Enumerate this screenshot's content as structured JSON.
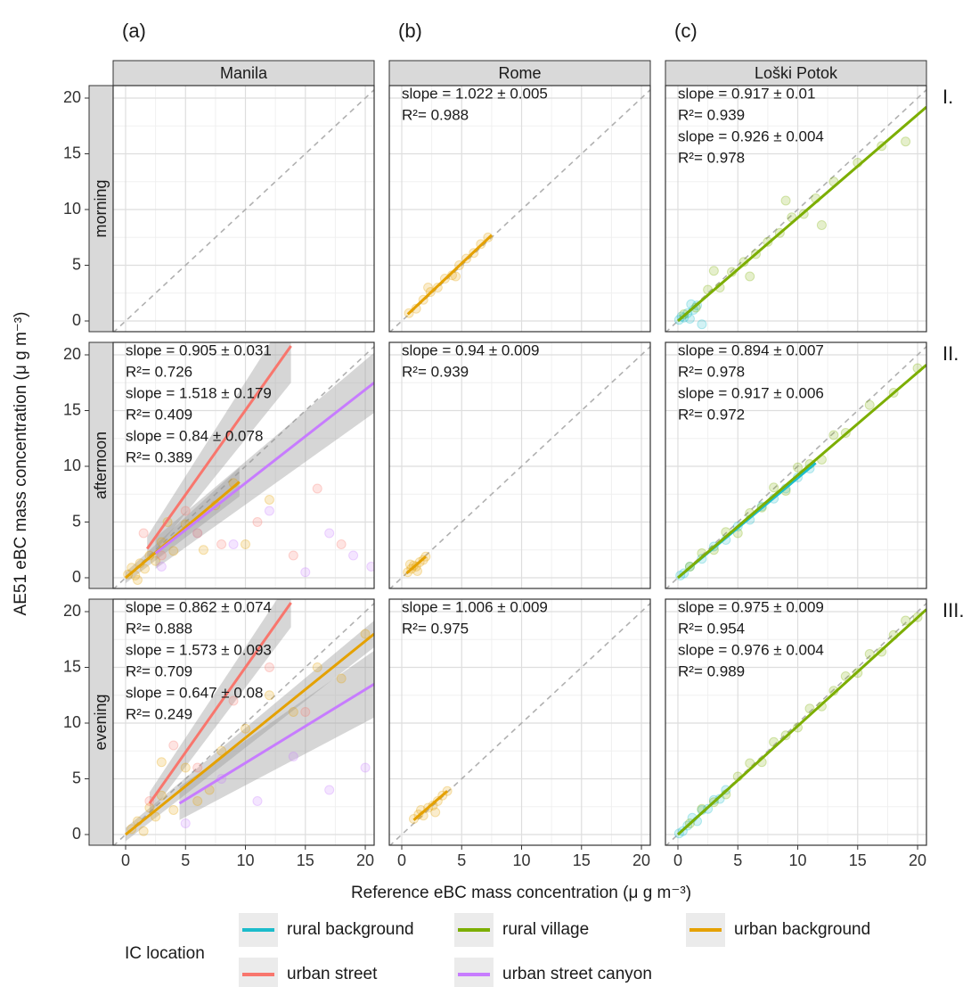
{
  "chart_data": {
    "type": "scatter",
    "x_label": "Reference eBC mass concentration (μ g m⁻³)",
    "y_label": "AE51 eBC mass concentration (μ g m⁻³)",
    "xlim": [
      -1.04,
      20.74
    ],
    "ylim": [
      -0.96,
      21.12
    ],
    "xticks": [
      0,
      5,
      10,
      15,
      20
    ],
    "yticks": [
      0,
      5,
      10,
      15,
      20
    ],
    "grid": true,
    "columns": [
      {
        "tag": "(a)",
        "name": "Manila"
      },
      {
        "tag": "(b)",
        "name": "Rome"
      },
      {
        "tag": "(c)",
        "name": "Loški Potok"
      }
    ],
    "rows": [
      {
        "name": "morning",
        "tag": "I."
      },
      {
        "name": "afternoon",
        "tag": "II."
      },
      {
        "name": "evening",
        "tag": "III."
      }
    ],
    "legend_title": "IC location",
    "series": [
      {
        "name": "rural background",
        "color": "#1cbccb"
      },
      {
        "name": "rural village",
        "color": "#7cae00"
      },
      {
        "name": "urban background",
        "color": "#e5a100"
      },
      {
        "name": "urban street",
        "color": "#f8766d"
      },
      {
        "name": "urban street canyon",
        "color": "#c77cff"
      }
    ],
    "panels": [
      {
        "column": 0,
        "row": 0,
        "groups": []
      },
      {
        "column": 1,
        "row": 0,
        "groups": [
          {
            "series": 2,
            "slope_label": "slope = 1.022 ± 0.005",
            "r2_label": "R²= 0.988",
            "x": [
              0.6,
              1.2,
              1.8,
              2.4,
              3.0,
              3.6,
              4.2,
              4.8,
              5.4,
              6.0,
              6.6,
              7.2,
              2.2,
              4.5
            ],
            "y": [
              0.7,
              1.1,
              1.9,
              2.6,
              3.0,
              3.8,
              4.1,
              5.0,
              5.6,
              6.1,
              6.9,
              7.5,
              3.0,
              4.0
            ],
            "fit": {
              "x": [
                0.5,
                7.5
              ],
              "y": [
                0.6,
                7.7
              ]
            }
          }
        ]
      },
      {
        "column": 2,
        "row": 0,
        "groups": [
          {
            "series": 0,
            "slope_label": "slope = 0.917 ± 0.01",
            "r2_label": "R²= 0.939",
            "x": [
              0.1,
              0.3,
              0.5,
              0.8,
              1.0,
              1.3,
              1.6,
              2.0,
              1.1
            ],
            "y": [
              0.1,
              0.4,
              0.3,
              0.7,
              0.2,
              1.0,
              1.4,
              -0.3,
              1.5
            ],
            "fit": {
              "x": [
                0,
                1.8
              ],
              "y": [
                0,
                1.65
              ]
            }
          },
          {
            "series": 1,
            "slope_label": "slope = 0.926 ± 0.004",
            "r2_label": "R²= 0.978",
            "x": [
              0.5,
              1.5,
              2.5,
              3.5,
              4.5,
              5.5,
              6.5,
              7.5,
              8.5,
              9.5,
              10.5,
              11.5,
              13,
              15,
              17,
              19,
              3,
              6,
              9,
              12
            ],
            "y": [
              0.6,
              1.2,
              2.8,
              3.0,
              4.4,
              5.3,
              6.0,
              7.1,
              7.9,
              9.3,
              9.6,
              11.0,
              12.5,
              14.2,
              15.7,
              16.1,
              4.5,
              4.0,
              10.8,
              8.6
            ],
            "fit": {
              "x": [
                0,
                20.74
              ],
              "y": [
                0,
                19.2
              ]
            }
          }
        ]
      },
      {
        "column": 0,
        "row": 1,
        "groups": [
          {
            "series": 2,
            "slope_label": "slope = 0.905 ± 0.031",
            "r2_label": "R²= 0.726",
            "x": [
              0.2,
              0.5,
              0.8,
              1.2,
              1.6,
              2.0,
              2.5,
              3.0,
              4.0,
              5.0,
              6.0,
              7.5,
              9.0,
              1.0,
              3.5,
              6.5,
              10,
              12
            ],
            "y": [
              0.3,
              0.9,
              0.2,
              1.3,
              0.8,
              2.0,
              1.5,
              3.2,
              2.4,
              4.8,
              4.0,
              6.5,
              8.5,
              -0.2,
              5.0,
              2.5,
              3.0,
              7.0
            ],
            "fit": {
              "x": [
                0,
                9.5
              ],
              "y": [
                0,
                8.6
              ],
              "ci_low": [
                -0.5,
                7.3
              ],
              "ci_high": [
                0.5,
                9.9
              ]
            }
          },
          {
            "series": 3,
            "slope_label": "slope = 1.518 ± 0.179",
            "r2_label": "R²= 0.409",
            "x": [
              1.5,
              3,
              5,
              8,
              11,
              14,
              16,
              18
            ],
            "y": [
              4,
              2,
              6,
              3,
              5,
              2,
              8,
              3
            ],
            "fit": {
              "x": [
                1.8,
                13.8
              ],
              "y": [
                2.6,
                20.8
              ],
              "ci_low": [
                1.5,
                17.5
              ],
              "ci_high": [
                3.7,
                24
              ]
            }
          },
          {
            "series": 4,
            "slope_label": "slope = 0.84 ± 0.078",
            "r2_label": "R²= 0.389",
            "x": [
              3,
              6,
              9,
              12,
              15,
              17,
              19,
              20.5
            ],
            "y": [
              1,
              4,
              3,
              6,
              0.5,
              4,
              2,
              1
            ],
            "fit": {
              "x": [
                2.5,
                20.74
              ],
              "y": [
                2.2,
                17.5
              ],
              "ci_low": [
                0.8,
                14.8
              ],
              "ci_high": [
                3.6,
                20.2
              ]
            }
          }
        ]
      },
      {
        "column": 1,
        "row": 1,
        "groups": [
          {
            "series": 2,
            "slope_label": "slope = 0.94 ± 0.009",
            "r2_label": "R²= 0.939",
            "x": [
              0.5,
              0.8,
              1.0,
              1.2,
              1.5,
              1.8,
              2.0,
              0.7,
              1.3
            ],
            "y": [
              0.5,
              0.8,
              1.1,
              1.0,
              1.4,
              1.6,
              1.9,
              1.2,
              0.6
            ],
            "fit": {
              "x": [
                0.4,
                2.0
              ],
              "y": [
                0.4,
                1.9
              ]
            }
          }
        ]
      },
      {
        "column": 2,
        "row": 1,
        "groups": [
          {
            "series": 0,
            "slope_label": "slope = 0.894 ± 0.007",
            "r2_label": "R²= 0.978",
            "x": [
              0.2,
              0.5,
              1,
              2,
              3,
              4,
              5,
              6,
              7,
              8,
              9,
              10,
              11
            ],
            "y": [
              0.2,
              0.4,
              1.0,
              1.7,
              2.8,
              3.4,
              4.6,
              5.2,
              6.4,
              7.1,
              8.0,
              9.0,
              9.8
            ],
            "fit": {
              "x": [
                0,
                11.5
              ],
              "y": [
                0,
                10.3
              ]
            }
          },
          {
            "series": 1,
            "slope_label": "slope = 0.917 ± 0.006",
            "r2_label": "R²= 0.972",
            "x": [
              1,
              2,
              3,
              4,
              5,
              6,
              7,
              8,
              9,
              10,
              11,
              12,
              13,
              14,
              16,
              18,
              20
            ],
            "y": [
              1.0,
              2.2,
              2.5,
              4.1,
              4.0,
              5.8,
              6.3,
              8.1,
              7.8,
              9.9,
              10.2,
              10.6,
              12.8,
              13.0,
              15.5,
              16.6,
              18.8
            ],
            "fit": {
              "x": [
                0,
                20.74
              ],
              "y": [
                0,
                19.1
              ]
            }
          }
        ]
      },
      {
        "column": 0,
        "row": 2,
        "groups": [
          {
            "series": 2,
            "slope_label": "slope = 0.862 ± 0.074",
            "r2_label": "R²= 0.888",
            "x": [
              0.5,
              1,
              1.5,
              2,
              2.5,
              3,
              4,
              5,
              6,
              8,
              10,
              12,
              14,
              16,
              18,
              20,
              3,
              7
            ],
            "y": [
              0.5,
              1.2,
              0.3,
              2.4,
              1.6,
              3.5,
              2.2,
              6,
              3,
              7.5,
              9.5,
              12.5,
              11,
              15,
              14,
              18,
              6.5,
              4
            ],
            "fit": {
              "x": [
                0,
                20.74
              ],
              "y": [
                0,
                18
              ],
              "ci_low": [
                -0.6,
                16.8
              ],
              "ci_high": [
                0.6,
                19.2
              ]
            }
          },
          {
            "series": 3,
            "slope_label": "slope = 1.573 ± 0.093",
            "r2_label": "R²= 0.709",
            "x": [
              2,
              4,
              6,
              9,
              12,
              15
            ],
            "y": [
              3,
              8,
              6,
              12,
              15,
              11
            ],
            "fit": {
              "x": [
                2,
                13.8
              ],
              "y": [
                2.8,
                20.8
              ],
              "ci_low": [
                1.8,
                18.6
              ],
              "ci_high": [
                3.8,
                23
              ]
            }
          },
          {
            "series": 4,
            "slope_label": "slope = 0.647 ± 0.08",
            "r2_label": "R²= 0.249",
            "x": [
              5,
              8,
              11,
              14,
              17,
              20
            ],
            "y": [
              1,
              5,
              3,
              7,
              4,
              6
            ],
            "fit": {
              "x": [
                4.5,
                20.74
              ],
              "y": [
                2.8,
                13.5
              ],
              "ci_low": [
                1.3,
                10.5
              ],
              "ci_high": [
                4.3,
                16.5
              ]
            }
          }
        ]
      },
      {
        "column": 1,
        "row": 2,
        "groups": [
          {
            "series": 2,
            "slope_label": "slope = 1.006 ± 0.009",
            "r2_label": "R²= 0.975",
            "x": [
              1,
              1.4,
              1.8,
              2.2,
              2.6,
              3,
              3.4,
              3.8,
              1.6,
              2.8
            ],
            "y": [
              1.4,
              1.8,
              1.7,
              2.4,
              2.6,
              3.0,
              3.5,
              3.9,
              2.2,
              2.0
            ],
            "fit": {
              "x": [
                1,
                3.8
              ],
              "y": [
                1.3,
                3.9
              ]
            }
          }
        ]
      },
      {
        "column": 2,
        "row": 2,
        "groups": [
          {
            "series": 0,
            "slope_label": "slope = 0.975 ± 0.009",
            "r2_label": "R²= 0.954",
            "x": [
              0.1,
              0.4,
              0.8,
              1.2,
              1.6,
              2,
              2.5,
              3,
              3.5,
              4
            ],
            "y": [
              0.1,
              0.3,
              0.8,
              1.5,
              1.2,
              2.2,
              2.3,
              3.1,
              3.2,
              4.0
            ],
            "fit": {
              "x": [
                0,
                4
              ],
              "y": [
                0,
                3.9
              ]
            }
          },
          {
            "series": 1,
            "slope_label": "slope = 0.976 ± 0.004",
            "r2_label": "R²= 0.989",
            "x": [
              1,
              2,
              3,
              4,
              5,
              6,
              7,
              8,
              9,
              10,
              11,
              12,
              13,
              14,
              15,
              16,
              17,
              18,
              19,
              20
            ],
            "y": [
              1,
              2.3,
              2.9,
              3.6,
              5.2,
              6.4,
              6.5,
              8.3,
              8.9,
              9.6,
              11.3,
              11.5,
              12.9,
              14.2,
              14.5,
              16.2,
              16.4,
              17.9,
              19.2,
              19.5
            ],
            "fit": {
              "x": [
                0,
                20.74
              ],
              "y": [
                0,
                20.2
              ]
            }
          }
        ]
      }
    ]
  }
}
